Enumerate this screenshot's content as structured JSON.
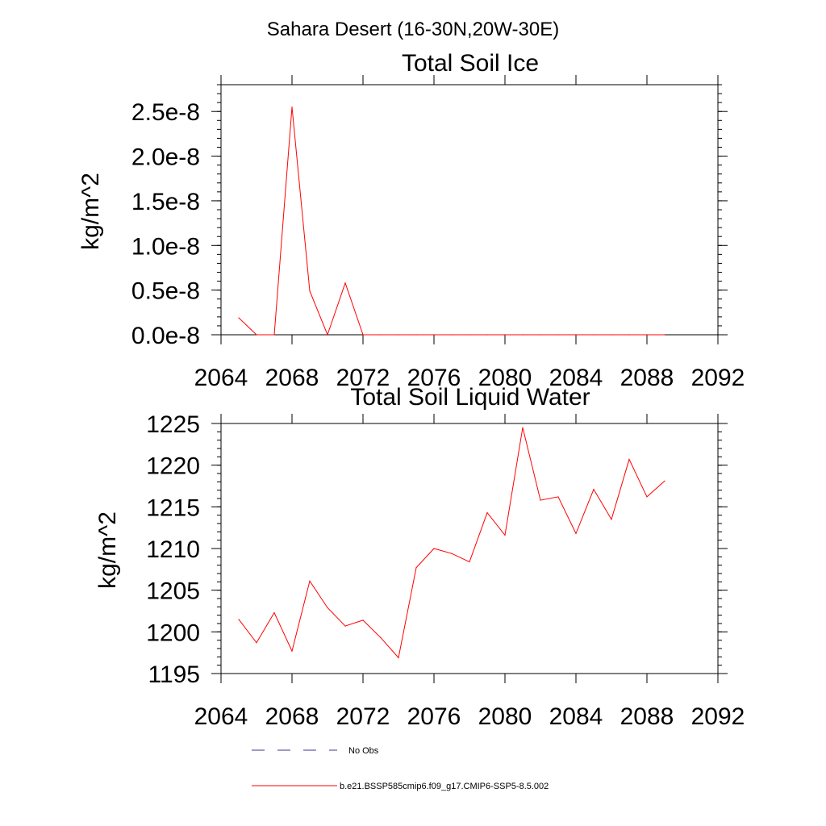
{
  "figure_title": "Sahara Desert (16-30N,20W-30E)",
  "legend": {
    "entries": [
      {
        "label": "No Obs",
        "color": "#3a3a8c",
        "style": "dashed"
      },
      {
        "label": "b.e21.BSSP585cmip6.f09_g17.CMIP6-SSP5-8.5.002",
        "color": "#ff0000",
        "style": "solid"
      }
    ]
  },
  "chart_data": [
    {
      "type": "line",
      "title": "Total Soil Ice",
      "ylabel": "kg/m^2",
      "xlabel": "",
      "xlim": [
        2064,
        2092
      ],
      "ylim": [
        0,
        2.8e-08
      ],
      "x_ticks": [
        2064,
        2068,
        2072,
        2076,
        2080,
        2084,
        2088,
        2092
      ],
      "x_tick_labels": [
        "2064",
        "2068",
        "2072",
        "2076",
        "2080",
        "2084",
        "2088",
        "2092"
      ],
      "y_ticks": [
        0,
        5e-09,
        1e-08,
        1.5e-08,
        2e-08,
        2.5e-08
      ],
      "y_tick_labels": [
        "0.0e-8",
        "0.5e-8",
        "1.0e-8",
        "1.5e-8",
        "2.0e-8",
        "2.5e-8"
      ],
      "grid": false,
      "series": [
        {
          "color": "#ff0000",
          "x": [
            2065,
            2066,
            2067,
            2068,
            2069,
            2070,
            2071,
            2072,
            2073,
            2074,
            2075,
            2076,
            2077,
            2078,
            2079,
            2080,
            2081,
            2082,
            2083,
            2084,
            2085,
            2086,
            2087,
            2088,
            2089
          ],
          "values": [
            1.9e-09,
            0,
            0,
            2.55e-08,
            4.9e-09,
            0,
            5.8e-09,
            0,
            0,
            0,
            0,
            0,
            0,
            0,
            0,
            0,
            0,
            0,
            0,
            0,
            0,
            0,
            0,
            0,
            0
          ]
        }
      ]
    },
    {
      "type": "line",
      "title": "Total Soil Liquid Water",
      "ylabel": "kg/m^2",
      "xlabel": "",
      "xlim": [
        2064,
        2092
      ],
      "ylim": [
        1195,
        1225
      ],
      "x_ticks": [
        2064,
        2068,
        2072,
        2076,
        2080,
        2084,
        2088,
        2092
      ],
      "x_tick_labels": [
        "2064",
        "2068",
        "2072",
        "2076",
        "2080",
        "2084",
        "2088",
        "2092"
      ],
      "y_ticks": [
        1195,
        1200,
        1205,
        1210,
        1215,
        1220,
        1225
      ],
      "y_tick_labels": [
        "1195",
        "1200",
        "1205",
        "1210",
        "1215",
        "1220",
        "1225"
      ],
      "grid": false,
      "series": [
        {
          "color": "#ff0000",
          "x": [
            2065,
            2066,
            2067,
            2068,
            2069,
            2070,
            2071,
            2072,
            2073,
            2074,
            2075,
            2076,
            2077,
            2078,
            2079,
            2080,
            2081,
            2082,
            2083,
            2084,
            2085,
            2086,
            2087,
            2088,
            2089
          ],
          "values": [
            1201.5,
            1198.7,
            1202.3,
            1197.7,
            1206.1,
            1202.9,
            1200.7,
            1201.4,
            1199.3,
            1196.9,
            1207.7,
            1210.0,
            1209.4,
            1208.4,
            1214.3,
            1211.6,
            1224.5,
            1215.8,
            1216.2,
            1211.8,
            1217.1,
            1213.5,
            1220.7,
            1216.2,
            1218.1
          ]
        }
      ]
    }
  ]
}
